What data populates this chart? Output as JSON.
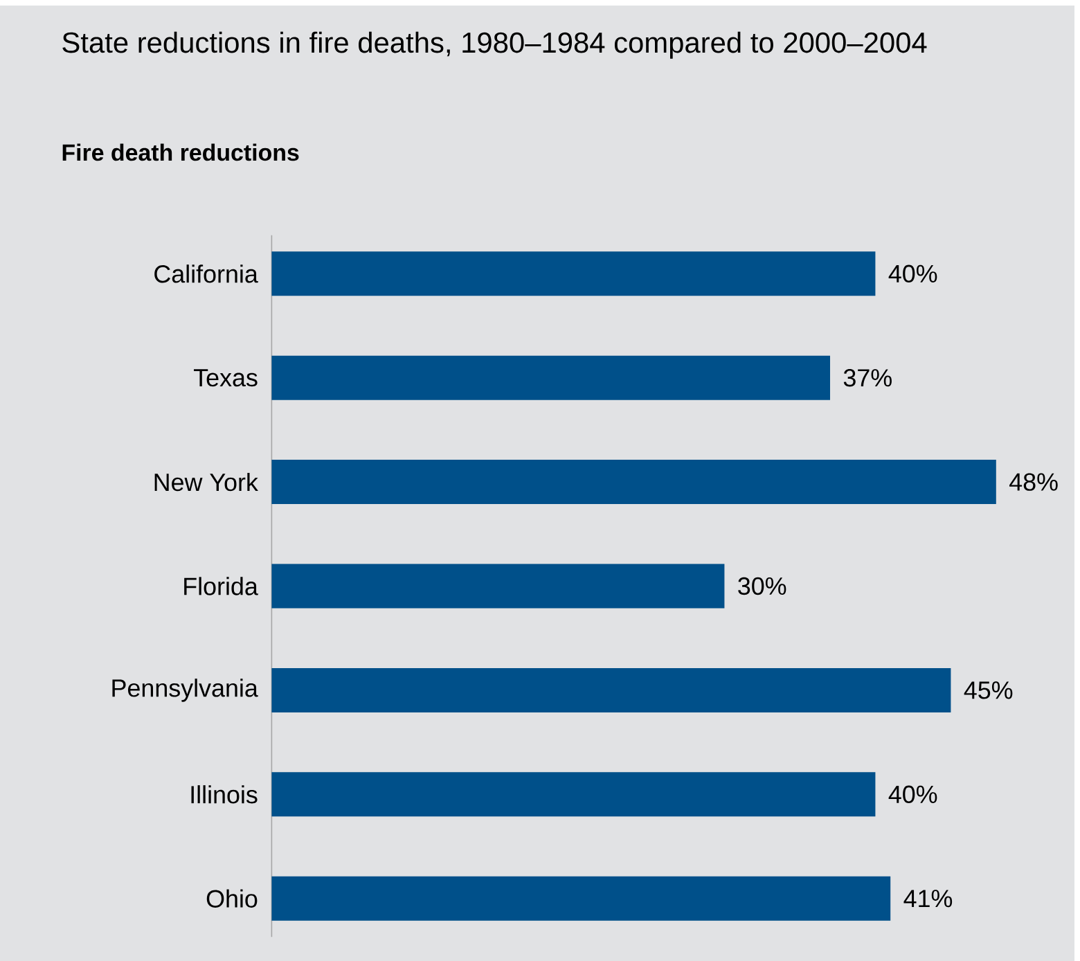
{
  "chart_data": {
    "type": "bar",
    "orientation": "horizontal",
    "title": "State reductions in fire deaths, 1980–1984 compared to 2000–2004",
    "subtitle": "Fire death reductions",
    "categories": [
      "California",
      "Texas",
      "New York",
      "Florida",
      "Pennsylvania",
      "Illinois",
      "Ohio"
    ],
    "values": [
      40,
      37,
      48,
      30,
      45,
      40,
      41
    ],
    "value_labels": [
      "40%",
      "37%",
      "48%",
      "30%",
      "45%",
      "40%",
      "41%"
    ],
    "color": "#00508a"
  }
}
